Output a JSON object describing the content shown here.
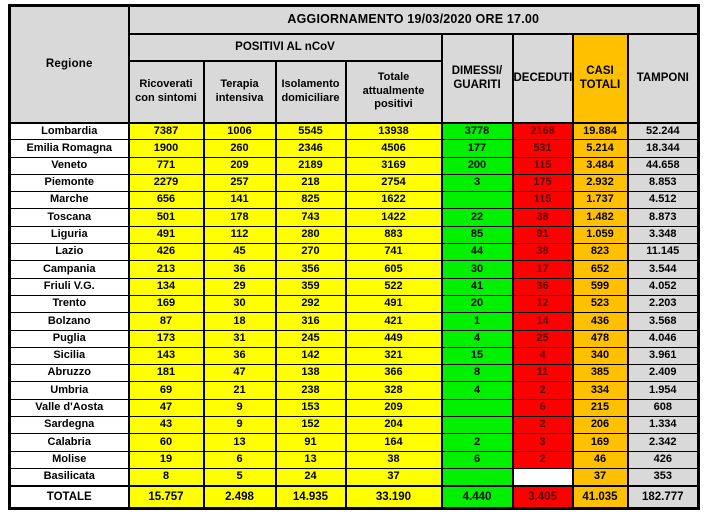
{
  "palette": {
    "grey": "#d9d9d9",
    "yellow": "#ffff00",
    "green": "#00f000",
    "red": "#ff0000",
    "orange": "#ffc000",
    "red_text": "#4a0b0b"
  },
  "header": {
    "title": "AGGIORNAMENTO 19/03/2020 ORE 17.00",
    "regione": "Regione",
    "positivi_group": "POSITIVI AL nCoV",
    "ricoverati": "Ricoverati\ncon sintomi",
    "terapia": "Terapia\nintensiva",
    "isolamento": "Isolamento\ndomiciliare",
    "totale_positivi": "Totale\nattualmente\npositivi",
    "dimessi": "DIMESSI/\nGUARITI",
    "deceduti": "DECEDUTI",
    "casi_totali": "CASI\nTOTALI",
    "tamponi": "TAMPONI"
  },
  "chart_data": {
    "type": "table",
    "title": "AGGIORNAMENTO 19/03/2020 ORE 17.00",
    "columns": [
      "Regione",
      "Ricoverati con sintomi",
      "Terapia intensiva",
      "Isolamento domiciliare",
      "Totale attualmente positivi",
      "DIMESSI/GUARITI",
      "DECEDUTI",
      "CASI TOTALI",
      "TAMPONI"
    ],
    "rows": [
      {
        "region": "Lombardia",
        "values": [
          "7387",
          "1006",
          "5545",
          "13938",
          "3778",
          "2168",
          "19.884",
          "52.244"
        ]
      },
      {
        "region": "Emilia Romagna",
        "values": [
          "1900",
          "260",
          "2346",
          "4506",
          "177",
          "531",
          "5.214",
          "18.344"
        ]
      },
      {
        "region": "Veneto",
        "values": [
          "771",
          "209",
          "2189",
          "3169",
          "200",
          "115",
          "3.484",
          "44.658"
        ]
      },
      {
        "region": "Piemonte",
        "values": [
          "2279",
          "257",
          "218",
          "2754",
          "3",
          "175",
          "2.932",
          "8.853"
        ]
      },
      {
        "region": "Marche",
        "values": [
          "656",
          "141",
          "825",
          "1622",
          "",
          "115",
          "1.737",
          "4.512"
        ]
      },
      {
        "region": "Toscana",
        "values": [
          "501",
          "178",
          "743",
          "1422",
          "22",
          "38",
          "1.482",
          "8.873"
        ]
      },
      {
        "region": "Liguria",
        "values": [
          "491",
          "112",
          "280",
          "883",
          "85",
          "91",
          "1.059",
          "3.348"
        ]
      },
      {
        "region": "Lazio",
        "values": [
          "426",
          "45",
          "270",
          "741",
          "44",
          "38",
          "823",
          "11.145"
        ]
      },
      {
        "region": "Campania",
        "values": [
          "213",
          "36",
          "356",
          "605",
          "30",
          "17",
          "652",
          "3.544"
        ]
      },
      {
        "region": "Friuli V.G.",
        "values": [
          "134",
          "29",
          "359",
          "522",
          "41",
          "36",
          "599",
          "4.052"
        ]
      },
      {
        "region": "Trento",
        "values": [
          "169",
          "30",
          "292",
          "491",
          "20",
          "12",
          "523",
          "2.203"
        ]
      },
      {
        "region": "Bolzano",
        "values": [
          "87",
          "18",
          "316",
          "421",
          "1",
          "14",
          "436",
          "3.568"
        ]
      },
      {
        "region": "Puglia",
        "values": [
          "173",
          "31",
          "245",
          "449",
          "4",
          "25",
          "478",
          "4.046"
        ]
      },
      {
        "region": "Sicilia",
        "values": [
          "143",
          "36",
          "142",
          "321",
          "15",
          "4",
          "340",
          "3.961"
        ]
      },
      {
        "region": "Abruzzo",
        "values": [
          "181",
          "47",
          "138",
          "366",
          "8",
          "11",
          "385",
          "2.409"
        ]
      },
      {
        "region": "Umbria",
        "values": [
          "69",
          "21",
          "238",
          "328",
          "4",
          "2",
          "334",
          "1.954"
        ]
      },
      {
        "region": "Valle d'Aosta",
        "values": [
          "47",
          "9",
          "153",
          "209",
          "",
          "6",
          "215",
          "608"
        ]
      },
      {
        "region": "Sardegna",
        "values": [
          "43",
          "9",
          "152",
          "204",
          "",
          "2",
          "206",
          "1.334"
        ]
      },
      {
        "region": "Calabria",
        "values": [
          "60",
          "13",
          "91",
          "164",
          "2",
          "3",
          "169",
          "2.342"
        ]
      },
      {
        "region": "Molise",
        "values": [
          "19",
          "6",
          "13",
          "38",
          "6",
          "2",
          "46",
          "426"
        ]
      },
      {
        "region": "Basilicata",
        "values": [
          "8",
          "5",
          "24",
          "37",
          "",
          "",
          "37",
          "353"
        ],
        "deceduti_bg": "white"
      }
    ],
    "total": {
      "label": "TOTALE",
      "values": [
        "15.757",
        "2.498",
        "14.935",
        "33.190",
        "4.440",
        "3.405",
        "41.035",
        "182.777"
      ]
    }
  }
}
